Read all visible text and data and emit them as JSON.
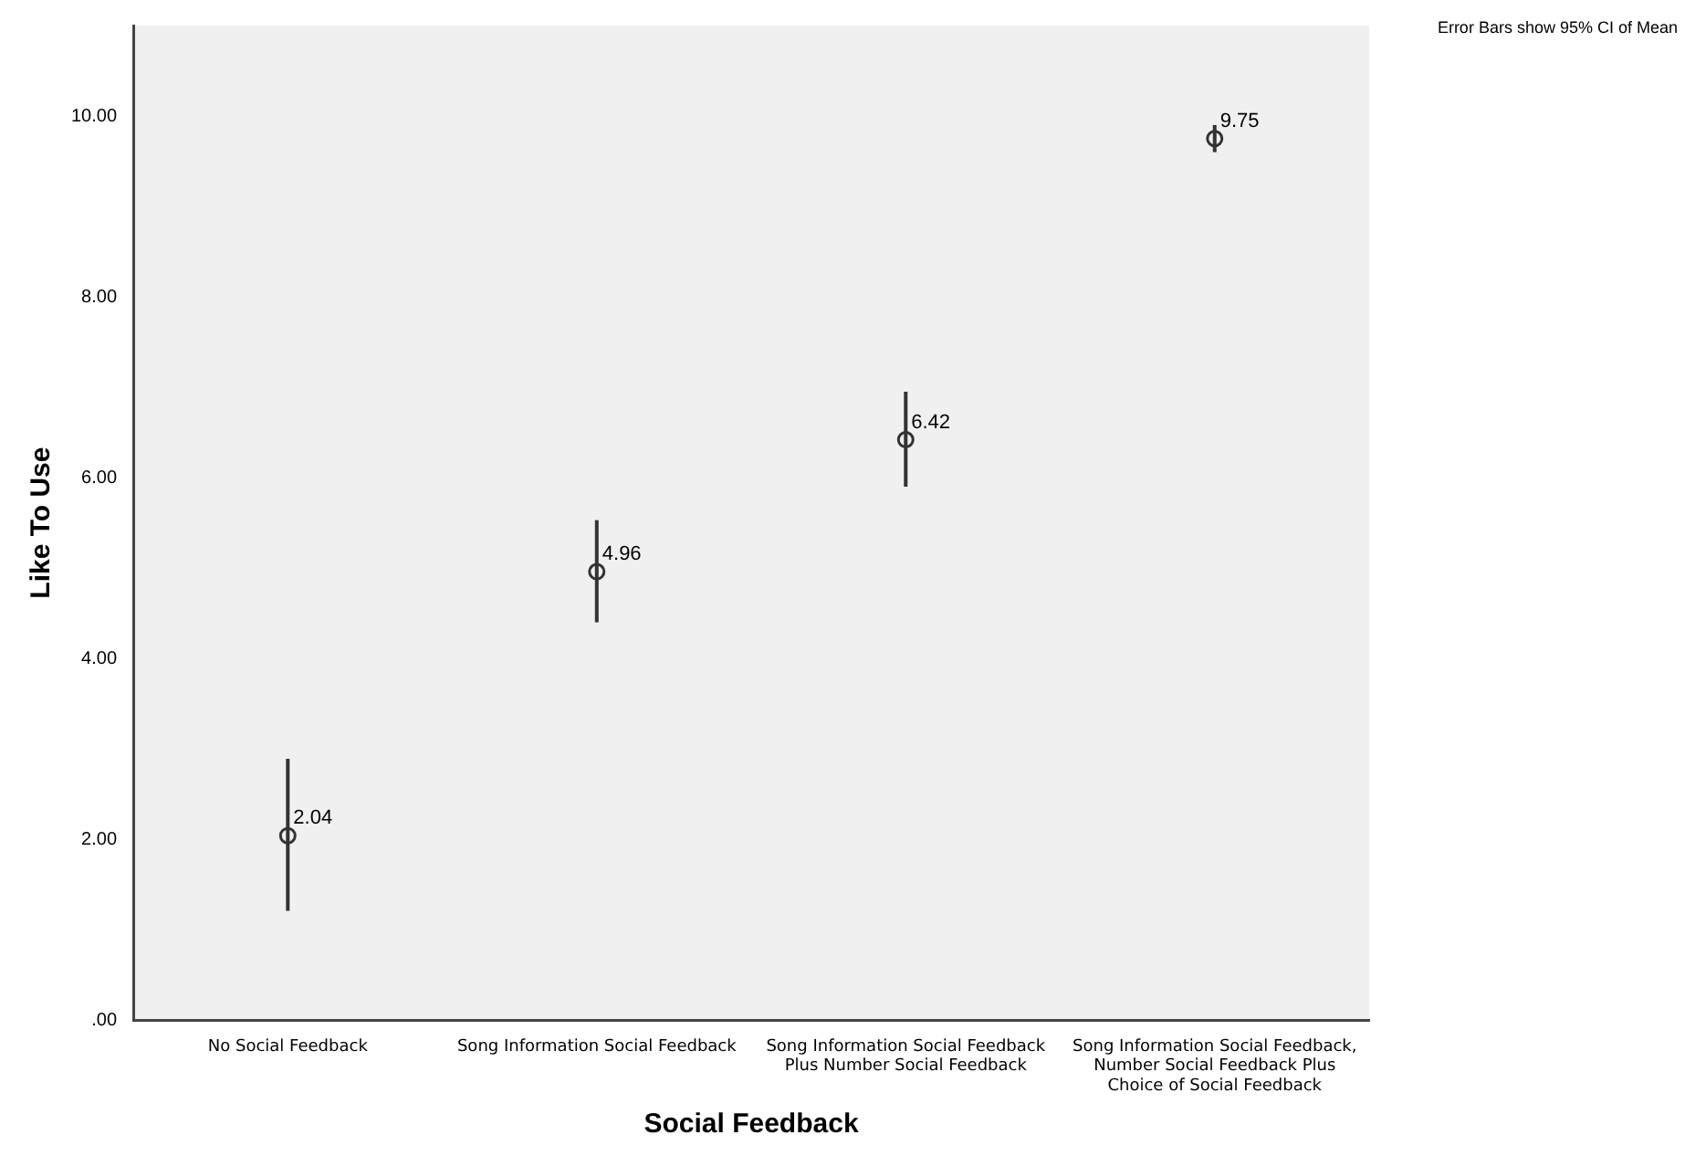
{
  "chart_data": {
    "type": "scatter",
    "xlabel": "Social Feedback",
    "ylabel": "Like To Use",
    "categories": [
      "No Social Feedback",
      "Song Information Social Feedback",
      "Song Information Social Feedback Plus Number Social Feedback",
      "Song Information Social Feedback, Number Social Feedback Plus Choice of Social Feedback"
    ],
    "values": [
      2.04,
      4.96,
      6.42,
      9.75
    ],
    "errors": [
      [
        1.21,
        2.89
      ],
      [
        4.4,
        5.53
      ],
      [
        5.9,
        6.95
      ],
      [
        9.6,
        9.9
      ]
    ],
    "color": "#333333",
    "marker": "circle",
    "data_labels": true,
    "ylim": [
      0,
      11
    ],
    "yticks": [
      {
        "value": 0,
        "label": ".00"
      },
      {
        "value": 2,
        "label": "2.00"
      },
      {
        "value": 4,
        "label": "4.00"
      },
      {
        "value": 6,
        "label": "6.00"
      },
      {
        "value": 8,
        "label": "8.00"
      },
      {
        "value": 10,
        "label": "10.00"
      }
    ],
    "grid": false,
    "legend": false,
    "annotations": [
      "Error Bars show 95% CI of Mean"
    ]
  }
}
